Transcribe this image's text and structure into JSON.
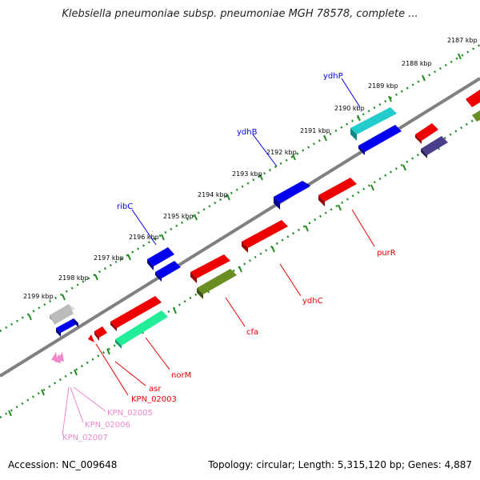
{
  "title": "Klebsiella pneumoniae subsp. pneumoniae MGH 78578, complete ...",
  "footer": {
    "accession": "Accession: NC_009648",
    "summary": "Topology: circular; Length: 5,315,120 bp; Genes: 4,887"
  },
  "kbp_ticks": [
    "2187 kbp",
    "2188 kbp",
    "2189 kbp",
    "2190 kbp",
    "2191 kbp",
    "2192 kbp",
    "2193 kbp",
    "2194 kbp",
    "2195 kbp",
    "2196 kbp",
    "2197 kbp",
    "2198 kbp",
    "2199 kbp"
  ],
  "gene_labels": {
    "ydhP": "ydhP",
    "ydhB": "ydhB",
    "ribC": "ribC",
    "purR": "purR",
    "ydhC": "ydhC",
    "cfa": "cfa",
    "norM": "norM",
    "asr": "asr",
    "kpn02003": "KPN_02003",
    "kpn02005": "KPN_02005",
    "kpn02006": "KPN_02006",
    "kpn02007": "KPN_02007"
  },
  "colors": {
    "backbone": "#808080",
    "forward_blue": "#0000ee",
    "reverse_red": "#ee0000",
    "cyan": "#22cccc",
    "olive": "#6b8e23",
    "mint": "#22ee99",
    "purple": "#4b3d8b",
    "grey_gene": "#bbbbbb",
    "pink": "#ee88cc",
    "tick_green": "#228B22"
  }
}
